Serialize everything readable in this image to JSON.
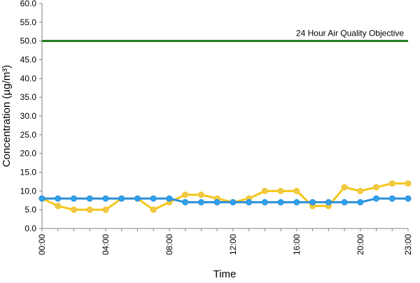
{
  "chart_data": {
    "type": "line",
    "title": "",
    "xlabel": "Time",
    "ylabel": "Concentration (µg/m³)",
    "ylim": [
      0,
      60
    ],
    "y_ticks": [
      "0.0",
      "5.0",
      "10.0",
      "15.0",
      "20.0",
      "25.0",
      "30.0",
      "35.0",
      "40.0",
      "45.0",
      "50.0",
      "55.0",
      "60.0"
    ],
    "x": [
      "00:00",
      "01:00",
      "02:00",
      "03:00",
      "04:00",
      "05:00",
      "06:00",
      "07:00",
      "08:00",
      "09:00",
      "10:00",
      "11:00",
      "12:00",
      "13:00",
      "14:00",
      "15:00",
      "16:00",
      "17:00",
      "18:00",
      "19:00",
      "20:00",
      "21:00",
      "22:00",
      "23:00"
    ],
    "x_tick_labels": [
      "00:00",
      "04:00",
      "08:00",
      "12:00",
      "16:00",
      "20:00",
      "23:00"
    ],
    "grid": false,
    "legend": "none",
    "objective": {
      "label": "24 Hour Air Quality Objective",
      "value": 50,
      "color": "#1a7a1a"
    },
    "series": [
      {
        "color": "#f5c518",
        "marker_fill": "#f0c94a",
        "values": [
          8,
          6,
          5,
          5,
          5,
          8,
          8,
          5,
          7,
          9,
          9,
          8,
          7,
          8,
          10,
          10,
          10,
          6,
          6,
          11,
          10,
          11,
          12,
          12
        ]
      },
      {
        "color": "#2a8fd8",
        "marker_fill": "#2fa0ee",
        "values": [
          8,
          8,
          8,
          8,
          8,
          8,
          8,
          8,
          8,
          7,
          7,
          7,
          7,
          7,
          7,
          7,
          7,
          7,
          7,
          7,
          7,
          8,
          8,
          8
        ]
      }
    ]
  }
}
